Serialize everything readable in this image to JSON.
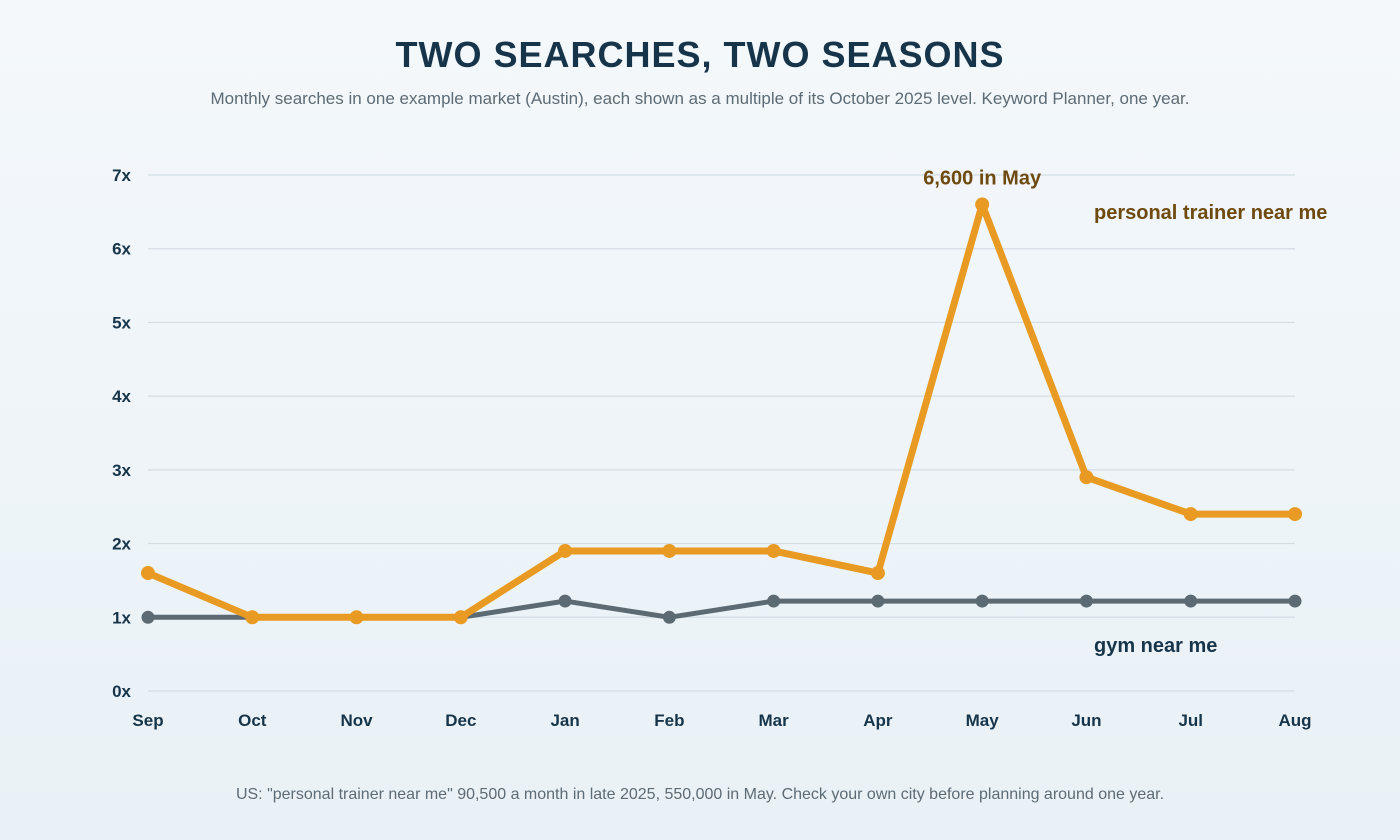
{
  "header": {
    "title": "TWO SEARCHES, TWO SEASONS",
    "subtitle": "Monthly searches in one example market (Austin), each shown as a multiple of its October 2025 level. Keyword Planner, one year."
  },
  "footnote": "US: \"personal trainer near me\" 90,500 a month in late 2025, 550,000 in May. Check your own city before planning around one year.",
  "colors": {
    "personal_trainer": "#e89a22",
    "personal_trainer_label": "#6e4a10",
    "gym": "#5c6a73",
    "gym_label": "#17354a",
    "grid": "#d3dde3",
    "axis_text": "#17354a"
  },
  "chart_data": {
    "type": "line",
    "title": "TWO SEARCHES, TWO SEASONS",
    "xlabel": "",
    "ylabel": "",
    "categories": [
      "Sep",
      "Oct",
      "Nov",
      "Dec",
      "Jan",
      "Feb",
      "Mar",
      "Apr",
      "May",
      "Jun",
      "Jul",
      "Aug"
    ],
    "ylim": [
      0,
      7
    ],
    "yticks": [
      0,
      1,
      2,
      3,
      4,
      5,
      6,
      7
    ],
    "ytick_labels": [
      "0x",
      "1x",
      "2x",
      "3x",
      "4x",
      "5x",
      "6x",
      "7x"
    ],
    "grid": true,
    "legend": "direct labels at right",
    "series": [
      {
        "name": "gym near me",
        "values": [
          1.0,
          1.0,
          1.0,
          1.0,
          1.22,
          1.0,
          1.22,
          1.22,
          1.22,
          1.22,
          1.22,
          1.22
        ]
      },
      {
        "name": "personal trainer near me",
        "values": [
          1.6,
          1.0,
          1.0,
          1.0,
          1.9,
          1.9,
          1.9,
          1.6,
          6.6,
          2.9,
          2.4,
          2.4
        ]
      }
    ],
    "annotations": [
      {
        "series": "personal trainer near me",
        "category": "May",
        "text": "6,600 in May"
      }
    ]
  }
}
